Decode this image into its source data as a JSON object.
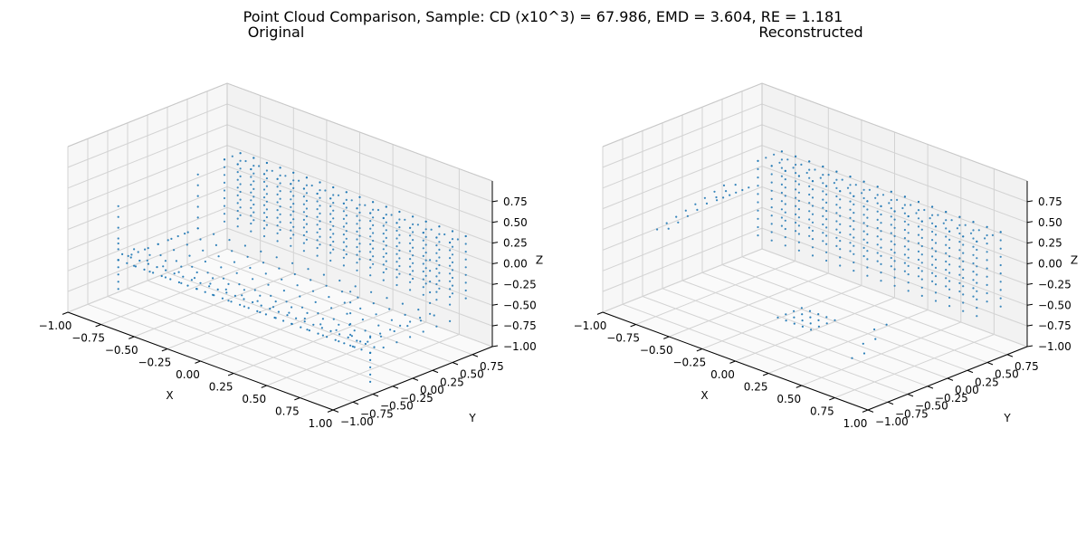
{
  "suptitle": "Point Cloud Comparison, Sample: CD (x10^3) = 67.986, EMD = 3.604, RE = 1.181",
  "chart_data": [
    {
      "type": "scatter3d",
      "title": "Original",
      "xlabel": "X",
      "ylabel": "Y",
      "zlabel": "Z",
      "xlim": [
        -1.0,
        1.0
      ],
      "ylim": [
        -1.0,
        1.0
      ],
      "zlim": [
        -1.0,
        1.0
      ],
      "xticks": [
        "−1.00",
        "−0.75",
        "−0.50",
        "−0.25",
        "0.00",
        "0.25",
        "0.50",
        "0.75",
        "1.00"
      ],
      "yticks": [
        "−1.00",
        "−0.75",
        "−0.50",
        "−0.25",
        "0.00",
        "0.25",
        "0.50",
        "0.75"
      ],
      "zticks": [
        "−1.00",
        "−0.75",
        "−0.50",
        "−0.25",
        "0.00",
        "0.25",
        "0.50",
        "0.75"
      ],
      "grid": true,
      "color": "#1f77b4",
      "shape": "sofa",
      "components": [
        {
          "part": "backrest",
          "x": [
            -0.75,
            0.95
          ],
          "y": [
            0.55,
            0.75
          ],
          "z": [
            -0.35,
            0.4
          ]
        },
        {
          "part": "seat",
          "x": [
            -0.95,
            0.95
          ],
          "y": [
            -0.45,
            0.55
          ],
          "z": [
            -0.55,
            -0.35
          ]
        },
        {
          "part": "left-arm",
          "x": [
            -0.95,
            -0.8
          ],
          "y": [
            -0.45,
            0.55
          ],
          "z": [
            -0.55,
            0.1
          ]
        },
        {
          "part": "right-arm",
          "x": [
            0.8,
            0.95
          ],
          "y": [
            -0.45,
            0.55
          ],
          "z": [
            -0.55,
            0.1
          ]
        },
        {
          "part": "front-base",
          "x": [
            -0.95,
            0.95
          ],
          "y": [
            -0.45,
            -0.45
          ],
          "z": [
            -0.9,
            -0.55
          ]
        }
      ]
    },
    {
      "type": "scatter3d",
      "title": "Reconstructed",
      "xlabel": "X",
      "ylabel": "Y",
      "zlabel": "Z",
      "xlim": [
        -1.0,
        1.0
      ],
      "ylim": [
        -1.0,
        1.0
      ],
      "zlim": [
        -1.0,
        1.0
      ],
      "xticks": [
        "−1.00",
        "−0.75",
        "−0.50",
        "−0.25",
        "0.00",
        "0.25",
        "0.50",
        "0.75",
        "1.00"
      ],
      "yticks": [
        "−1.00",
        "−0.75",
        "−0.50",
        "−0.25",
        "0.00",
        "0.25",
        "0.50",
        "0.75"
      ],
      "zticks": [
        "−1.00",
        "−0.75",
        "−0.50",
        "−0.25",
        "0.00",
        "0.25",
        "0.50",
        "0.75"
      ],
      "grid": true,
      "color": "#1f77b4",
      "shape": "sofa-partial",
      "components": [
        {
          "part": "backrest",
          "x": [
            -0.7,
            0.95
          ],
          "y": [
            0.45,
            0.75
          ],
          "z": [
            -0.45,
            0.45
          ]
        },
        {
          "part": "left-arm-line",
          "x": [
            -0.95,
            -0.8
          ],
          "y": [
            -0.4,
            0.5
          ],
          "z": [
            -0.2,
            0.05
          ]
        },
        {
          "part": "seat-patch",
          "x": [
            -0.1,
            0.15
          ],
          "y": [
            -0.3,
            0.0
          ],
          "z": [
            -0.8,
            -0.65
          ]
        },
        {
          "part": "right-leg",
          "x": [
            0.55,
            0.7
          ],
          "y": [
            -0.45,
            -0.1
          ],
          "z": [
            -0.85,
            -0.55
          ]
        }
      ]
    }
  ]
}
